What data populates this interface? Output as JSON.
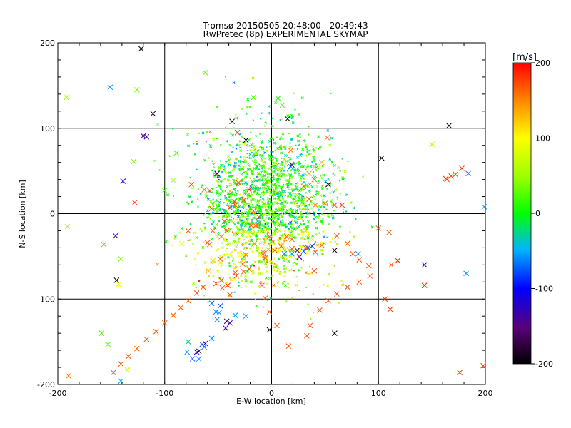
{
  "chart_data": {
    "type": "scatter",
    "title": "Tromsø 20150505 20:48:00—20:49:43",
    "subtitle": "RwPretec (8p) EXPERIMENTAL SKYMAP",
    "xlabel": "E-W location [km]",
    "ylabel": "N-S location [km]",
    "xlim": [
      -200,
      200
    ],
    "ylim": [
      -200,
      200
    ],
    "xticks": [
      -200,
      -100,
      0,
      100,
      200
    ],
    "yticks": [
      -200,
      -100,
      0,
      100,
      200
    ],
    "grid": true,
    "colorbar": {
      "label": "[m/s]",
      "range": [
        -200,
        200
      ],
      "ticks": [
        -200,
        -100,
        0,
        100,
        200
      ],
      "colormap": "rainbow: black-purple-blue-cyan-green-yellow-orange-red"
    },
    "points": [
      [
        -122,
        193,
        -200,
        "x"
      ],
      [
        -111,
        117,
        -180,
        "x"
      ],
      [
        -117,
        90,
        -140,
        "x"
      ],
      [
        -120,
        91,
        -140,
        "x"
      ],
      [
        -37,
        108,
        -200,
        "x"
      ],
      [
        15,
        111,
        -200,
        "x"
      ],
      [
        166,
        103,
        -200,
        "x"
      ],
      [
        103,
        65,
        -200,
        "x"
      ],
      [
        -24,
        86,
        -200,
        "x"
      ],
      [
        -51,
        47,
        -200,
        "x"
      ],
      [
        53,
        34,
        -200,
        "x"
      ],
      [
        -145,
        -78,
        -200,
        "x"
      ],
      [
        -146,
        -26,
        -130,
        "x"
      ],
      [
        -139,
        38,
        -100,
        "x"
      ],
      [
        59,
        -43,
        -200,
        "x"
      ],
      [
        59,
        -140,
        -200,
        "x"
      ],
      [
        -2,
        -136,
        -200,
        "x"
      ],
      [
        -68,
        -161,
        -180,
        "x"
      ],
      [
        -62,
        -152,
        -130,
        "x"
      ],
      [
        -70,
        -162,
        -110,
        "x"
      ],
      [
        -74,
        -170,
        -70,
        "x"
      ],
      [
        -65,
        -153,
        -80,
        "x"
      ],
      [
        -63,
        -156,
        -70,
        "x"
      ],
      [
        -56,
        -105,
        -70,
        "x"
      ],
      [
        -48,
        -108,
        -80,
        "x"
      ],
      [
        -42,
        -126,
        -140,
        "x"
      ],
      [
        -39,
        -128,
        -130,
        "x"
      ],
      [
        -43,
        -134,
        -110,
        "x"
      ],
      [
        -34,
        -119,
        -60,
        "x"
      ],
      [
        -24,
        -120,
        -60,
        "x"
      ],
      [
        -52,
        -115,
        -60,
        "x"
      ],
      [
        -56,
        -146,
        -60,
        "x"
      ],
      [
        -68,
        -170,
        -60,
        "x"
      ],
      [
        -79,
        -162,
        -60,
        "x"
      ],
      [
        -78,
        -150,
        -30,
        "x"
      ],
      [
        -49,
        -116,
        -60,
        "x"
      ],
      [
        -51,
        -124,
        -60,
        "x"
      ],
      [
        24,
        -43,
        -130,
        "x"
      ],
      [
        26,
        -51,
        -100,
        "x"
      ],
      [
        30,
        -44,
        -80,
        "x"
      ],
      [
        34,
        -40,
        -70,
        "x"
      ],
      [
        38,
        -38,
        -90,
        "x"
      ],
      [
        19,
        -47,
        -60,
        "x"
      ],
      [
        12,
        -47,
        -60,
        "x"
      ],
      [
        81,
        -47,
        -60,
        "x"
      ],
      [
        182,
        -70,
        -60,
        "x"
      ],
      [
        143,
        -60,
        -120,
        "x"
      ],
      [
        184,
        47,
        -60,
        "x"
      ],
      [
        199,
        8,
        -60,
        "x"
      ],
      [
        18,
        55,
        -60,
        "x"
      ],
      [
        19,
        57,
        -120,
        "x"
      ],
      [
        -129,
        61,
        30,
        "x"
      ],
      [
        -192,
        136,
        50,
        "x"
      ],
      [
        -62,
        165,
        30,
        "x"
      ],
      [
        -17,
        136,
        20,
        "x"
      ],
      [
        6,
        135,
        10,
        "x"
      ],
      [
        10,
        127,
        20,
        "x"
      ],
      [
        -126,
        145,
        40,
        "x"
      ],
      [
        -151,
        148,
        -60,
        "x"
      ],
      [
        -89,
        71,
        20,
        "x"
      ],
      [
        -92,
        39,
        60,
        "x"
      ],
      [
        -191,
        -15,
        70,
        "x"
      ],
      [
        -157,
        -36,
        20,
        "x"
      ],
      [
        -153,
        -153,
        30,
        "x"
      ],
      [
        -159,
        -140,
        20,
        "x"
      ],
      [
        -141,
        -196,
        -50,
        "x"
      ],
      [
        -135,
        -183,
        70,
        "x"
      ],
      [
        -143,
        -83,
        100,
        "x"
      ],
      [
        -141,
        -53,
        40,
        "x"
      ],
      [
        -100,
        27,
        20,
        "x"
      ],
      [
        -84,
        -35,
        90,
        "x"
      ],
      [
        150,
        81,
        60,
        "x"
      ],
      [
        -55,
        -55,
        120,
        "x"
      ],
      [
        -59,
        -67,
        130,
        "x"
      ],
      [
        -34,
        -69,
        170,
        "x"
      ],
      [
        -33,
        -73,
        180,
        "x"
      ],
      [
        -26,
        -68,
        170,
        "x"
      ],
      [
        -41,
        -84,
        180,
        "x"
      ],
      [
        -39,
        -95,
        170,
        "x"
      ],
      [
        -46,
        -87,
        170,
        "x"
      ],
      [
        -52,
        -82,
        180,
        "x"
      ],
      [
        -47,
        -78,
        170,
        "x"
      ],
      [
        -58,
        -36,
        150,
        "x"
      ],
      [
        -24,
        -48,
        160,
        "x"
      ],
      [
        -8,
        -45,
        150,
        "x"
      ],
      [
        -3,
        -42,
        140,
        "x"
      ],
      [
        -6,
        -51,
        120,
        "x"
      ],
      [
        -16,
        -35,
        150,
        "x"
      ],
      [
        -31,
        36,
        170,
        "x"
      ],
      [
        -21,
        28,
        180,
        "x"
      ],
      [
        -63,
        28,
        160,
        "x"
      ],
      [
        -75,
        34,
        170,
        "x"
      ],
      [
        -55,
        -20,
        170,
        "x"
      ],
      [
        -47,
        -27,
        160,
        "x"
      ],
      [
        -12,
        -4,
        170,
        "x"
      ],
      [
        -19,
        -14,
        160,
        "x"
      ],
      [
        -13,
        -13,
        150,
        "x"
      ],
      [
        -56,
        6,
        170,
        "x"
      ],
      [
        66,
        10,
        180,
        "x"
      ],
      [
        59,
        10,
        170,
        "x"
      ],
      [
        50,
        12,
        160,
        "x"
      ],
      [
        41,
        10,
        150,
        "x"
      ],
      [
        35,
        17,
        160,
        "x"
      ],
      [
        52,
        89,
        160,
        "x"
      ],
      [
        -32,
        95,
        180,
        "x"
      ],
      [
        -128,
        13,
        180,
        "x"
      ],
      [
        30,
        32,
        170,
        "x"
      ],
      [
        40,
        40,
        160,
        "x"
      ],
      [
        35,
        47,
        140,
        "x"
      ],
      [
        47,
        60,
        130,
        "x"
      ],
      [
        40,
        54,
        120,
        "x"
      ],
      [
        18,
        74,
        160,
        "x"
      ],
      [
        100,
        -17,
        160,
        "x"
      ],
      [
        110,
        -22,
        170,
        "x"
      ],
      [
        106,
        -100,
        180,
        "x"
      ],
      [
        111,
        -112,
        180,
        "x"
      ],
      [
        118,
        -55,
        190,
        "x"
      ],
      [
        112,
        -60,
        170,
        "x"
      ],
      [
        143,
        -84,
        190,
        "x"
      ],
      [
        163,
        41,
        180,
        "x"
      ],
      [
        168,
        44,
        180,
        "x"
      ],
      [
        172,
        46,
        180,
        "x"
      ],
      [
        164,
        40,
        180,
        "x"
      ],
      [
        178,
        53,
        180,
        "x"
      ],
      [
        176,
        -186,
        180,
        "x"
      ],
      [
        198,
        -178,
        180,
        "x"
      ],
      [
        -190,
        -190,
        160,
        "x"
      ],
      [
        -58,
        27,
        170,
        "x"
      ],
      [
        -42,
        -20,
        170,
        "x"
      ],
      [
        -35,
        14,
        170,
        "x"
      ],
      [
        -17,
        3,
        170,
        "x"
      ],
      [
        -15,
        -14,
        170,
        "x"
      ],
      [
        -78,
        -20,
        170,
        "x"
      ],
      [
        -48,
        -53,
        170,
        "x"
      ],
      [
        -27,
        -59,
        170,
        "x"
      ],
      [
        -6,
        -52,
        170,
        "x"
      ],
      [
        -8,
        -47,
        170,
        "x"
      ],
      [
        3,
        -43,
        170,
        "x"
      ],
      [
        19,
        -30,
        170,
        "x"
      ],
      [
        32,
        -40,
        170,
        "x"
      ],
      [
        41,
        -45,
        170,
        "x"
      ],
      [
        40,
        -67,
        170,
        "x"
      ],
      [
        14,
        -27,
        170,
        "x"
      ],
      [
        -60,
        -34,
        170,
        "x"
      ],
      [
        -44,
        -9,
        170,
        "x"
      ],
      [
        -39,
        7,
        170,
        "x"
      ],
      [
        -34,
        10,
        170,
        "x"
      ],
      [
        -26,
        16,
        170,
        "x"
      ],
      [
        -2,
        -27,
        170,
        "x"
      ],
      [
        9,
        -38,
        170,
        "x"
      ],
      [
        19,
        -41,
        170,
        "x"
      ],
      [
        26,
        -50,
        170,
        "x"
      ],
      [
        47,
        -37,
        170,
        "x"
      ],
      [
        61,
        -26,
        170,
        "x"
      ],
      [
        71,
        -35,
        170,
        "x"
      ],
      [
        76,
        -47,
        170,
        "x"
      ],
      [
        82,
        -54,
        170,
        "x"
      ],
      [
        91,
        -61,
        170,
        "x"
      ],
      [
        -21,
        -65,
        170,
        "x"
      ],
      [
        -9,
        -84,
        170,
        "x"
      ],
      [
        -6,
        -99,
        170,
        "x"
      ],
      [
        -2,
        -115,
        170,
        "x"
      ],
      [
        5,
        -131,
        170,
        "x"
      ],
      [
        16,
        -155,
        170,
        "x"
      ],
      [
        33,
        -143,
        170,
        "x"
      ],
      [
        36,
        -131,
        170,
        "x"
      ],
      [
        45,
        -113,
        170,
        "x"
      ],
      [
        53,
        -102,
        170,
        "x"
      ],
      [
        61,
        -94,
        170,
        "x"
      ],
      [
        71,
        -86,
        170,
        "x"
      ],
      [
        82,
        -80,
        170,
        "x"
      ],
      [
        92,
        -73,
        170,
        "x"
      ],
      [
        -64,
        -86,
        170,
        "x"
      ],
      [
        -70,
        -93,
        170,
        "x"
      ],
      [
        -78,
        -102,
        170,
        "x"
      ],
      [
        -85,
        -110,
        170,
        "x"
      ],
      [
        -92,
        -119,
        170,
        "x"
      ],
      [
        -100,
        -128,
        170,
        "x"
      ],
      [
        -108,
        -138,
        170,
        "x"
      ],
      [
        -117,
        -147,
        170,
        "x"
      ],
      [
        -126,
        -158,
        170,
        "x"
      ],
      [
        -134,
        -167,
        170,
        "x"
      ],
      [
        -141,
        -176,
        170,
        "x"
      ],
      [
        -148,
        -186,
        170,
        "x"
      ]
    ],
    "cluster": {
      "center_x": -5,
      "center_y": 10,
      "spread_x": 30,
      "spread_y": 45,
      "count": 1800,
      "velocity_mean": 10,
      "velocity_spread": 35
    }
  }
}
